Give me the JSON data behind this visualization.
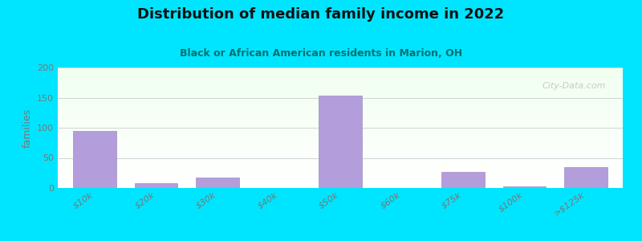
{
  "title": "Distribution of median family income in 2022",
  "subtitle": "Black or African American residents in Marion, OH",
  "categories": [
    "$10k",
    "$20k",
    "$30k",
    "$40k",
    "$50k",
    "$60k",
    "$75k",
    "$100k",
    ">$125k"
  ],
  "values": [
    95,
    8,
    18,
    0,
    153,
    0,
    27,
    3,
    35
  ],
  "bar_color": "#b39ddb",
  "bar_edge_color": "#9e8ec0",
  "ylabel": "families",
  "ylim": [
    0,
    200
  ],
  "yticks": [
    0,
    50,
    100,
    150,
    200
  ],
  "background_outer": "#00e5ff",
  "grid_color": "#cccccc",
  "title_color": "#111111",
  "subtitle_color": "#007070",
  "tick_label_color": "#777777",
  "watermark": "City-Data.com",
  "watermark_color": "#aaaaaa"
}
